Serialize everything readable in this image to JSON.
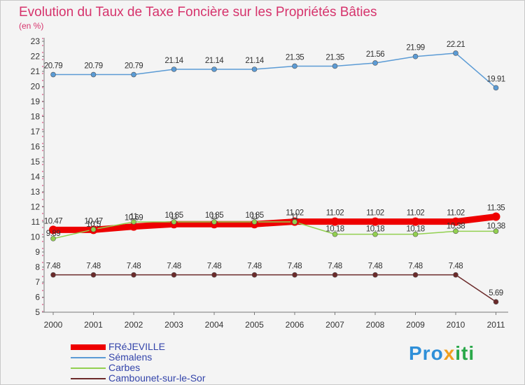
{
  "title": "Evolution du Taux de Taxe Foncière sur les Propriétés Bâties",
  "unit_label": "(en %)",
  "brand": {
    "part1": "Pro",
    "part2": "x",
    "part3": "iti"
  },
  "colors": {
    "title": "#d6336c",
    "axis": "#d6336c",
    "frejeville": "#ee0000",
    "semalens": "#5b9bd5",
    "carbes": "#92d050",
    "cambounet": "#6b2a2a",
    "label": "#333333"
  },
  "chart_data": {
    "type": "line",
    "title": "Evolution du Taux de Taxe Foncière sur les Propriétés Bâties",
    "ylabel": "(en %)",
    "xlabel": "",
    "ylim": [
      5,
      23
    ],
    "yticks": [
      "5",
      "6",
      "7",
      "8",
      "9",
      "10",
      "11",
      "12",
      "13",
      "14",
      "15",
      "16",
      "17",
      "18",
      "19",
      "20",
      "21",
      "22",
      "23"
    ],
    "categories": [
      "2000",
      "2001",
      "2002",
      "2003",
      "2004",
      "2005",
      "2006",
      "2007",
      "2008",
      "2009",
      "2010",
      "2011"
    ],
    "series": [
      {
        "name": "FRéJEVILLE",
        "key": "frejeville",
        "values": [
          10.47,
          10.47,
          10.69,
          10.85,
          10.85,
          10.85,
          11.02,
          11.02,
          11.02,
          11.02,
          11.02,
          11.35
        ],
        "labels": [
          "10.47",
          "10.47",
          "10.69",
          "10.85",
          "10.85",
          "10.85",
          "11.02",
          "11.02",
          "11.02",
          "11.02",
          "11.02",
          "11.35"
        ]
      },
      {
        "name": "Sémalens",
        "key": "semalens",
        "values": [
          20.79,
          20.79,
          20.79,
          21.14,
          21.14,
          21.14,
          21.35,
          21.35,
          21.56,
          21.99,
          22.21,
          19.91
        ],
        "labels": [
          "20.79",
          "20.79",
          "20.79",
          "21.14",
          "21.14",
          "21.14",
          "21.35",
          "21.35",
          "21.56",
          "21.99",
          "22.21",
          "19.91"
        ]
      },
      {
        "name": "Carbes",
        "key": "carbes",
        "values": [
          9.89,
          10.5,
          11.0,
          11.0,
          11.0,
          11.0,
          11.0,
          10.18,
          10.18,
          10.18,
          10.38,
          10.38
        ],
        "labels": [
          "9.89",
          "10.5",
          "11",
          "11",
          "11",
          "11",
          "11",
          "10.18",
          "10.18",
          "10.18",
          "10.38",
          "10.38"
        ]
      },
      {
        "name": "Cambounet-sur-le-Sor",
        "key": "cambounet",
        "values": [
          7.48,
          7.48,
          7.48,
          7.48,
          7.48,
          7.48,
          7.48,
          7.48,
          7.48,
          7.48,
          7.48,
          5.69
        ],
        "labels": [
          "7.48",
          "7.48",
          "7.48",
          "7.48",
          "7.48",
          "7.48",
          "7.48",
          "7.48",
          "7.48",
          "7.48",
          "7.48",
          "5.69"
        ]
      }
    ],
    "legend_position": "bottom-left",
    "grid": false
  }
}
